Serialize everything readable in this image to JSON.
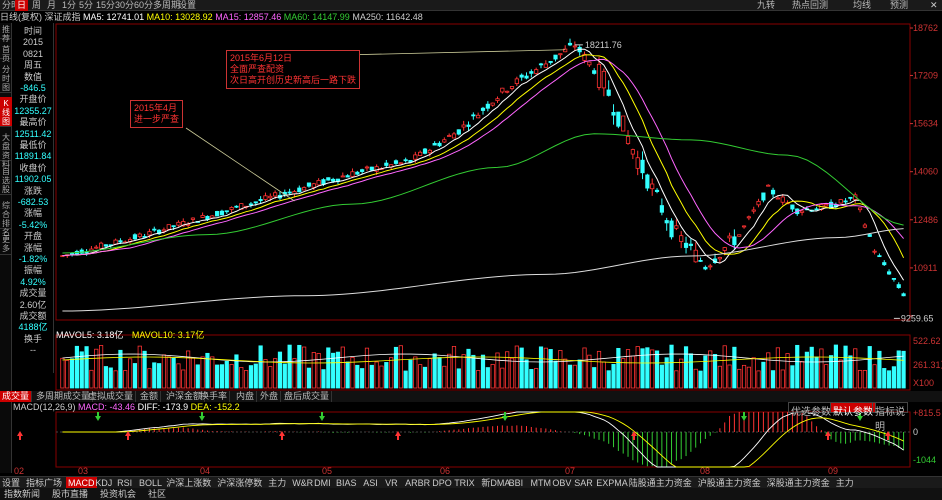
{
  "topbar": {
    "periods": [
      "分时",
      "日",
      "周",
      "月",
      "1分",
      "5分",
      "15分",
      "30分",
      "60分",
      "多周期",
      "设置"
    ],
    "active": 1,
    "right": [
      "九转",
      "热点回测",
      "均线",
      "预测"
    ]
  },
  "inforow": {
    "label": "日线(复权)",
    "index": "深证成指",
    "ma5": "MA5: 12741.01",
    "ma10": "MA10: 13028.92",
    "ma15": "MA15: 12857.46",
    "ma60": "MA60: 14147.99",
    "ma250": "MA250: 11642.48",
    "colors": {
      "ma5": "#ffffff",
      "ma10": "#ffff00",
      "ma15": "#ff66ff",
      "ma60": "#33cc33",
      "ma250": "#cccccc"
    }
  },
  "leftbar": [
    "推荐",
    "首页",
    "分时图",
    "K线图",
    "大盘资料",
    "自选股",
    "综合排名",
    "更多"
  ],
  "info": [
    {
      "t": "时间",
      "c": "#ccc"
    },
    {
      "t": "2015",
      "c": "#ccc"
    },
    {
      "t": "0821",
      "c": "#ccc"
    },
    {
      "t": "周五",
      "c": "#ccc"
    },
    {
      "t": "数值",
      "c": "#ccc"
    },
    {
      "t": "-846.5",
      "c": "#33ffff"
    },
    {
      "t": "开盘价",
      "c": "#ccc"
    },
    {
      "t": "12355.27",
      "c": "#33ffff"
    },
    {
      "t": "最高价",
      "c": "#ccc"
    },
    {
      "t": "12511.42",
      "c": "#33ffff"
    },
    {
      "t": "最低价",
      "c": "#ccc"
    },
    {
      "t": "11891.84",
      "c": "#33ffff"
    },
    {
      "t": "收盘价",
      "c": "#ccc"
    },
    {
      "t": "11902.05",
      "c": "#33ffff"
    },
    {
      "t": "涨跌",
      "c": "#ccc"
    },
    {
      "t": "-682.53",
      "c": "#33ffff"
    },
    {
      "t": "涨幅",
      "c": "#ccc"
    },
    {
      "t": "-5.42%",
      "c": "#33ffff"
    },
    {
      "t": "开盘",
      "c": "#ccc"
    },
    {
      "t": "涨幅",
      "c": "#ccc"
    },
    {
      "t": "-1.82%",
      "c": "#33ffff"
    },
    {
      "t": "振幅",
      "c": "#ccc"
    },
    {
      "t": "4.92%",
      "c": "#33ffff"
    },
    {
      "t": "成交量",
      "c": "#ccc"
    },
    {
      "t": "2.60亿",
      "c": "#ccc"
    },
    {
      "t": "成交额",
      "c": "#ccc"
    },
    {
      "t": "4188亿",
      "c": "#33ffff"
    },
    {
      "t": "换手",
      "c": "#ccc"
    },
    {
      "t": "--",
      "c": "#ccc"
    }
  ],
  "price_axis": [
    "18762",
    "17209",
    "15634",
    "14060",
    "12486",
    "10911",
    "9337"
  ],
  "annotations": {
    "high": "18211.76",
    "low": "9259.65",
    "note1": [
      "2015年6月12日",
      "全面严查配资",
      "次日高开创历史新高后一路下跌"
    ],
    "note2": [
      "2015年4月",
      "进一步严查"
    ]
  },
  "vol_info": {
    "mavol5": "MAVOL5: 3.18亿",
    "mavol10": "MAVOL10: 3.17亿"
  },
  "vol_axis": [
    "522.62",
    "261.31万",
    "X100"
  ],
  "tabs": [
    "成交量",
    "多周期成交量",
    "虚拟成交量",
    "金额",
    "沪深金额",
    "换手率",
    "内盘",
    "外盘",
    "盘后成交量"
  ],
  "macd_info": {
    "label": "MACD(12,26,9)",
    "macd": "MACD: -43.46",
    "diff": "DIFF: -173.9",
    "dea": "DEA: -152.2"
  },
  "macd_buttons": [
    "优选参数",
    "默认参数",
    "指标说明"
  ],
  "macd_axis": [
    "+815.5",
    "0",
    "-1044"
  ],
  "date_axis": [
    "02",
    "03",
    "04",
    "05",
    "06",
    "07",
    "08",
    "09"
  ],
  "indicators": [
    "设置",
    "指标广场",
    "MACD",
    "KDJ",
    "RSI",
    "BOLL",
    "沪深上涨数",
    "沪深涨停数",
    "主力",
    "W&R",
    "DMI",
    "BIAS",
    "ASI",
    "VR",
    "ARBR",
    "DPO",
    "TRIX",
    "新DMA",
    "BBI",
    "MTM",
    "OBV",
    "SAR",
    "EXPMA",
    "陆股通主力资金",
    "沪股通主力资金",
    "深股通主力资金",
    "主力"
  ],
  "status": [
    "指数新闻",
    "股市直播",
    "投资机会",
    "社区"
  ]
}
